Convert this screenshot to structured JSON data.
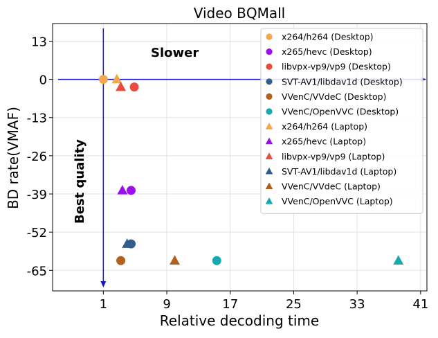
{
  "chart_data": {
    "type": "scatter",
    "title": "Video BQMall",
    "xlabel": "Relative decoding time",
    "ylabel": "BD rate(VMAF)",
    "xlim": [
      -5.4,
      41.8
    ],
    "ylim": [
      -72,
      19
    ],
    "xticks": [
      1,
      9,
      17,
      25,
      33,
      41
    ],
    "yticks": [
      13,
      0,
      -13,
      -26,
      -39,
      -52,
      -65
    ],
    "grid": true,
    "legend_position": "top-right",
    "annotations": [
      {
        "text": "Slower"
      },
      {
        "text": "Best quality"
      }
    ],
    "series": [
      {
        "name": "x264/h264 (Desktop)",
        "marker": "circle",
        "color": "#f4a84b",
        "x": 1.0,
        "y": 0
      },
      {
        "name": "x265/hevc (Desktop)",
        "marker": "circle",
        "color": "#9b0ef0",
        "x": 4.5,
        "y": -37.8
      },
      {
        "name": "libvpx-vp9/vp9 (Desktop)",
        "marker": "circle",
        "color": "#e74c3c",
        "x": 4.9,
        "y": -2.6
      },
      {
        "name": "SVT-AV1/libdav1d (Desktop)",
        "marker": "circle",
        "color": "#2f5f8a",
        "x": 4.5,
        "y": -56
      },
      {
        "name": "VVenC/VVdeC (Desktop)",
        "marker": "circle",
        "color": "#b35f1e",
        "x": 3.2,
        "y": -61.7
      },
      {
        "name": "VVenC/OpenVVC (Desktop)",
        "marker": "circle",
        "color": "#17a9b0",
        "x": 15.3,
        "y": -61.7
      },
      {
        "name": "x264/h264 (Laptop)",
        "marker": "triangle",
        "color": "#f4a84b",
        "x": 2.7,
        "y": 0
      },
      {
        "name": "x265/hevc (Laptop)",
        "marker": "triangle",
        "color": "#9b0ef0",
        "x": 3.4,
        "y": -37.8
      },
      {
        "name": "libvpx-vp9/vp9 (Laptop)",
        "marker": "triangle",
        "color": "#e74c3c",
        "x": 3.2,
        "y": -2.6
      },
      {
        "name": "SVT-AV1/libdav1d (Laptop)",
        "marker": "triangle",
        "color": "#2f5f8a",
        "x": 4.0,
        "y": -56
      },
      {
        "name": "VVenC/VVdeC (Laptop)",
        "marker": "triangle",
        "color": "#b35f1e",
        "x": 10.0,
        "y": -61.7
      },
      {
        "name": "VVenC/OpenVVC (Laptop)",
        "marker": "triangle",
        "color": "#17a9b0",
        "x": 38.2,
        "y": -61.7
      }
    ]
  }
}
